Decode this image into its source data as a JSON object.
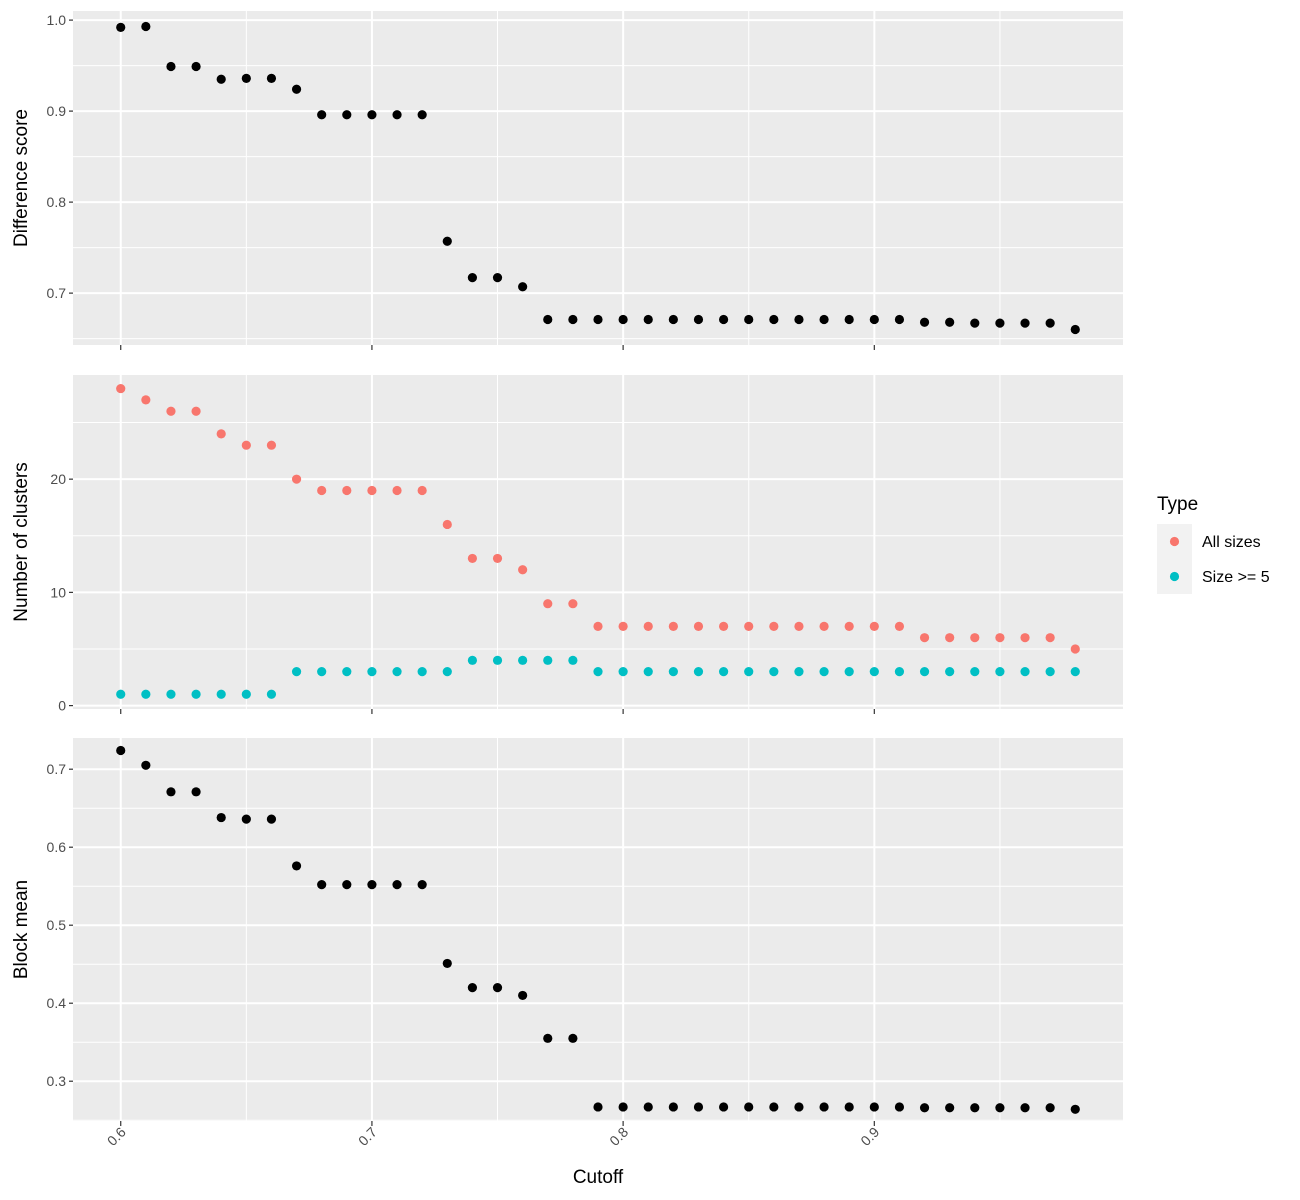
{
  "chart_data": {
    "type": "scatter",
    "xlabel": "Cutoff",
    "x": [
      0.6,
      0.61,
      0.62,
      0.63,
      0.64,
      0.65,
      0.66,
      0.67,
      0.68,
      0.69,
      0.7,
      0.71,
      0.72,
      0.73,
      0.74,
      0.75,
      0.76,
      0.77,
      0.78,
      0.79,
      0.8,
      0.81,
      0.82,
      0.83,
      0.84,
      0.85,
      0.86,
      0.87,
      0.88,
      0.89,
      0.9,
      0.91,
      0.92,
      0.93,
      0.94,
      0.95,
      0.96,
      0.97,
      0.98
    ],
    "xlim": [
      0.581,
      0.999
    ],
    "xticks": [
      {
        "value": 0.6,
        "label": "0.6"
      },
      {
        "value": 0.7,
        "label": "0.7"
      },
      {
        "value": 0.8,
        "label": "0.8"
      },
      {
        "value": 0.9,
        "label": "0.9"
      }
    ],
    "panels": [
      {
        "ylabel": "Difference score",
        "ylim": [
          0.643,
          1.01
        ],
        "yticks": [
          {
            "value": 0.7,
            "label": "0.7"
          },
          {
            "value": 0.8,
            "label": "0.8"
          },
          {
            "value": 0.9,
            "label": "0.9"
          },
          {
            "value": 1.0,
            "label": "1.0"
          }
        ],
        "series": [
          {
            "color": "#000000",
            "values": [
              0.992,
              0.993,
              0.949,
              0.949,
              0.935,
              0.936,
              0.936,
              0.924,
              0.896,
              0.896,
              0.896,
              0.896,
              0.896,
              0.757,
              0.717,
              0.717,
              0.707,
              0.671,
              0.671,
              0.671,
              0.671,
              0.671,
              0.671,
              0.671,
              0.671,
              0.671,
              0.671,
              0.671,
              0.671,
              0.671,
              0.671,
              0.671,
              0.668,
              0.668,
              0.667,
              0.667,
              0.667,
              0.667,
              0.66
            ]
          }
        ]
      },
      {
        "ylabel": "Number of clusters",
        "ylim": [
          -0.3,
          29.2
        ],
        "yticks": [
          {
            "value": 0,
            "label": "0"
          },
          {
            "value": 10,
            "label": "10"
          },
          {
            "value": 20,
            "label": "20"
          }
        ],
        "series": [
          {
            "name": "All sizes",
            "color": "#F8766D",
            "values": [
              28,
              27,
              26,
              26,
              24,
              23,
              23,
              20,
              19,
              19,
              19,
              19,
              19,
              16,
              13,
              13,
              12,
              9,
              9,
              7,
              7,
              7,
              7,
              7,
              7,
              7,
              7,
              7,
              7,
              7,
              7,
              7,
              6,
              6,
              6,
              6,
              6,
              6,
              5
            ]
          },
          {
            "name": "Size >= 5",
            "color": "#00BFC4",
            "values": [
              1,
              1,
              1,
              1,
              1,
              1,
              1,
              3,
              3,
              3,
              3,
              3,
              3,
              3,
              4,
              4,
              4,
              4,
              4,
              3,
              3,
              3,
              3,
              3,
              3,
              3,
              3,
              3,
              3,
              3,
              3,
              3,
              3,
              3,
              3,
              3,
              3,
              3,
              3
            ]
          }
        ]
      },
      {
        "ylabel": "Block mean",
        "ylim": [
          0.249,
          0.74
        ],
        "yticks": [
          {
            "value": 0.3,
            "label": "0.3"
          },
          {
            "value": 0.4,
            "label": "0.4"
          },
          {
            "value": 0.5,
            "label": "0.5"
          },
          {
            "value": 0.6,
            "label": "0.6"
          },
          {
            "value": 0.7,
            "label": "0.7"
          }
        ],
        "series": [
          {
            "color": "#000000",
            "values": [
              0.724,
              0.705,
              0.671,
              0.671,
              0.638,
              0.636,
              0.636,
              0.576,
              0.552,
              0.552,
              0.552,
              0.552,
              0.552,
              0.451,
              0.42,
              0.42,
              0.41,
              0.355,
              0.355,
              0.267,
              0.267,
              0.267,
              0.267,
              0.267,
              0.267,
              0.267,
              0.267,
              0.267,
              0.267,
              0.267,
              0.267,
              0.267,
              0.266,
              0.266,
              0.266,
              0.266,
              0.266,
              0.266,
              0.264
            ]
          }
        ]
      }
    ],
    "legend": {
      "title": "Type",
      "placement": "right",
      "entries": [
        {
          "label": "All sizes",
          "color": "#F8766D"
        },
        {
          "label": "Size >= 5",
          "color": "#00BFC4"
        }
      ]
    },
    "grid": true,
    "panel_background": "#EBEBEB",
    "grid_color": "#FFFFFF"
  }
}
